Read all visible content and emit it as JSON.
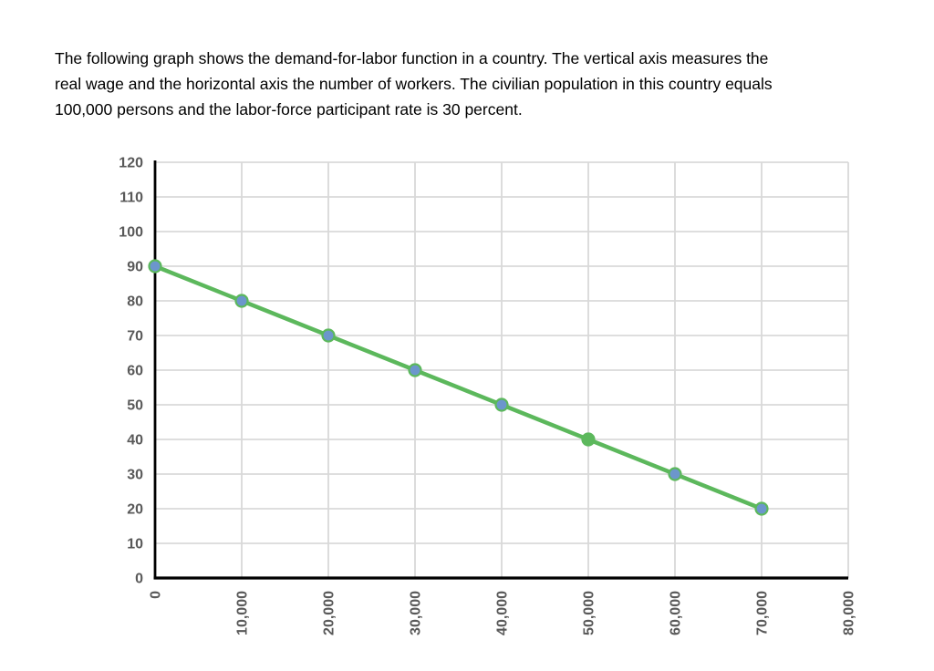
{
  "intro": {
    "lines": [
      "The following graph shows the demand-for-labor function in a country. The vertical axis measures the",
      "real wage and the horizontal axis the number of workers. The civilian population in this country equals",
      "100,000 persons and the labor-force participant rate is 30 percent."
    ]
  },
  "chart_data": {
    "type": "line",
    "title": "",
    "xlabel": "",
    "ylabel": "",
    "x": [
      0,
      10000,
      20000,
      30000,
      40000,
      50000,
      60000,
      70000
    ],
    "series": [
      {
        "name": "demand-for-labor",
        "values": [
          90,
          80,
          70,
          60,
          50,
          40,
          30,
          20
        ]
      }
    ],
    "x_ticks": [
      0,
      10000,
      20000,
      30000,
      40000,
      50000,
      60000,
      70000,
      80000
    ],
    "x_tick_labels": [
      "0",
      "10,000",
      "20,000",
      "30,000",
      "40,000",
      "50,000",
      "60,000",
      "70,000",
      "80,000"
    ],
    "y_ticks": [
      0,
      10,
      20,
      30,
      40,
      50,
      60,
      70,
      80,
      90,
      100,
      110,
      120
    ],
    "y_tick_labels": [
      "0",
      "10",
      "20",
      "30",
      "40",
      "50",
      "60",
      "70",
      "80",
      "90",
      "100",
      "110",
      "120"
    ],
    "xlim": [
      0,
      80000
    ],
    "ylim": [
      0,
      120
    ],
    "grid": true,
    "legend": "none",
    "x_tick_label_rotation": -90,
    "special_marker": {
      "x": 50000,
      "y": 40,
      "style": "solid-line-color"
    },
    "colors": {
      "line": "#5cb85c",
      "marker_fill": "#6c96cc",
      "marker_stroke": "#5cb85c",
      "special_marker_fill": "#5cb85c",
      "grid": "#d9d9d9",
      "axis": "#000000",
      "tick_label": "#595959",
      "text": "#000000",
      "background": "#ffffff"
    }
  }
}
